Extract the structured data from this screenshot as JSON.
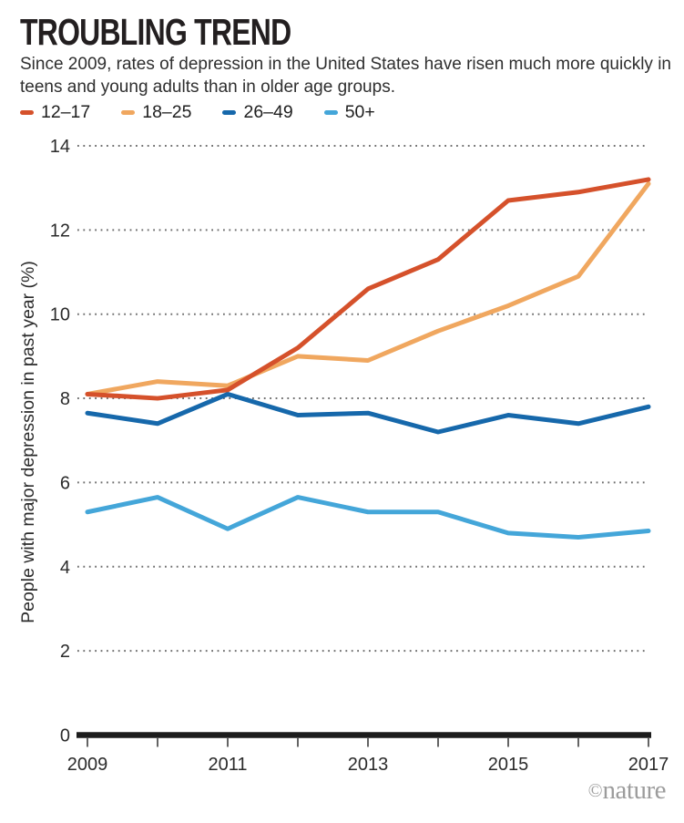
{
  "header": {
    "title": "TROUBLING TREND",
    "subtitle": "Since 2009, rates of depression in the United States have risen much more quickly in teens and young adults than in older age groups."
  },
  "watermark": {
    "copyright": "©",
    "name": "nature"
  },
  "chart_data": {
    "type": "line",
    "title": "TROUBLING TREND",
    "subtitle": "Since 2009, rates of depression in the United States have risen much more quickly in teens and young adults than in older age groups.",
    "ylabel": "People with major depression in past year (%)",
    "xlabel": "",
    "x": [
      2009,
      2010,
      2011,
      2012,
      2013,
      2014,
      2015,
      2016,
      2017
    ],
    "x_tick_labels": [
      2009,
      2011,
      2013,
      2015,
      2017
    ],
    "ylim": [
      0,
      14
    ],
    "yticks": [
      0,
      2,
      4,
      6,
      8,
      10,
      12,
      14
    ],
    "grid": "horizontal-dotted",
    "legend_position": "top-left",
    "series": [
      {
        "name": "12–17",
        "color": "#d5512b",
        "values": [
          8.1,
          8.0,
          8.2,
          9.2,
          10.6,
          11.3,
          12.7,
          12.9,
          13.2
        ]
      },
      {
        "name": "18–25",
        "color": "#f0a75f",
        "values": [
          8.1,
          8.4,
          8.3,
          9.0,
          8.9,
          9.6,
          10.2,
          10.9,
          13.1
        ]
      },
      {
        "name": "26–49",
        "color": "#1668ab",
        "values": [
          7.65,
          7.4,
          8.1,
          7.6,
          7.65,
          7.2,
          7.6,
          7.4,
          7.8
        ]
      },
      {
        "name": "50+",
        "color": "#44a6d9",
        "values": [
          5.3,
          5.65,
          4.9,
          5.65,
          5.3,
          5.3,
          4.8,
          4.7,
          4.85
        ]
      }
    ]
  }
}
